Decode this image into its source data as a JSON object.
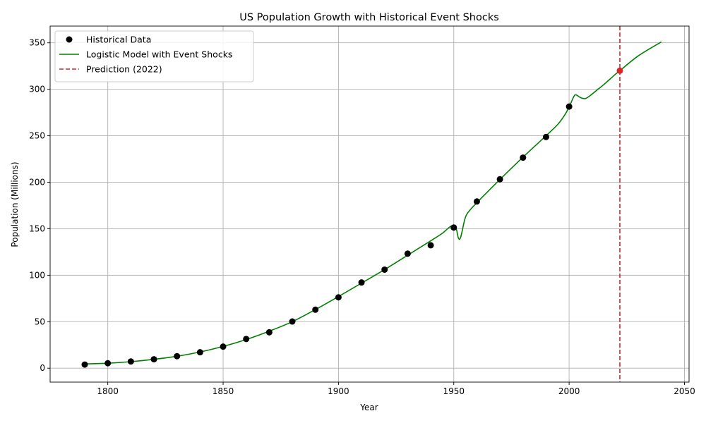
{
  "chart_data": {
    "type": "line",
    "title": "US Population Growth with Historical Event Shocks",
    "xlabel": "Year",
    "ylabel": "Population (Millions)",
    "xlim": [
      1775,
      2052
    ],
    "ylim": [
      -15,
      368
    ],
    "xticks": [
      1800,
      1850,
      1900,
      1950,
      2000,
      2050
    ],
    "yticks": [
      0,
      50,
      100,
      150,
      200,
      250,
      300,
      350
    ],
    "grid": true,
    "legend_position": "top-left",
    "legend": [
      {
        "label": "Historical Data",
        "kind": "marker",
        "color": "#000000"
      },
      {
        "label": "Logistic Model with Event Shocks",
        "kind": "line",
        "color": "#008000"
      },
      {
        "label": "Prediction (2022)",
        "kind": "dashed",
        "color": "#d62728"
      }
    ],
    "historical": {
      "name": "Historical Data",
      "x": [
        1790,
        1800,
        1810,
        1820,
        1830,
        1840,
        1850,
        1860,
        1870,
        1880,
        1890,
        1900,
        1910,
        1920,
        1930,
        1940,
        1950,
        1960,
        1970,
        1980,
        1990,
        2000
      ],
      "y": [
        3.9,
        5.3,
        7.2,
        9.6,
        12.9,
        17.1,
        23.2,
        31.4,
        38.6,
        50.2,
        62.9,
        76.2,
        92.2,
        106.0,
        123.2,
        132.2,
        151.3,
        179.3,
        203.2,
        226.5,
        248.7,
        281.4
      ]
    },
    "model": {
      "name": "Logistic Model with Event Shocks",
      "x": [
        1790,
        1800,
        1810,
        1820,
        1830,
        1840,
        1850,
        1860,
        1870,
        1880,
        1890,
        1900,
        1910,
        1920,
        1930,
        1940,
        1945,
        1949,
        1951,
        1952,
        1953,
        1955,
        1957,
        1960,
        1970,
        1980,
        1990,
        1995,
        1998,
        2000,
        2002,
        2003,
        2005,
        2007,
        2009,
        2012,
        2015,
        2020,
        2022,
        2030,
        2040
      ],
      "y": [
        4.5,
        5.3,
        7.0,
        9.5,
        12.8,
        17.4,
        23.4,
        30.8,
        39.8,
        50.0,
        63.0,
        77.0,
        91.5,
        106.0,
        121.5,
        137.0,
        145.0,
        153.0,
        150.0,
        140.0,
        141.0,
        162.0,
        170.0,
        178.0,
        203.0,
        227.0,
        250.0,
        262.0,
        272.0,
        281.0,
        292.0,
        294.0,
        291.0,
        290.0,
        293.0,
        299.0,
        305.0,
        316.0,
        320.0,
        336.0,
        351.0
      ]
    },
    "prediction": {
      "name": "Prediction (2022)",
      "x": 2022,
      "y": 320.0
    }
  }
}
